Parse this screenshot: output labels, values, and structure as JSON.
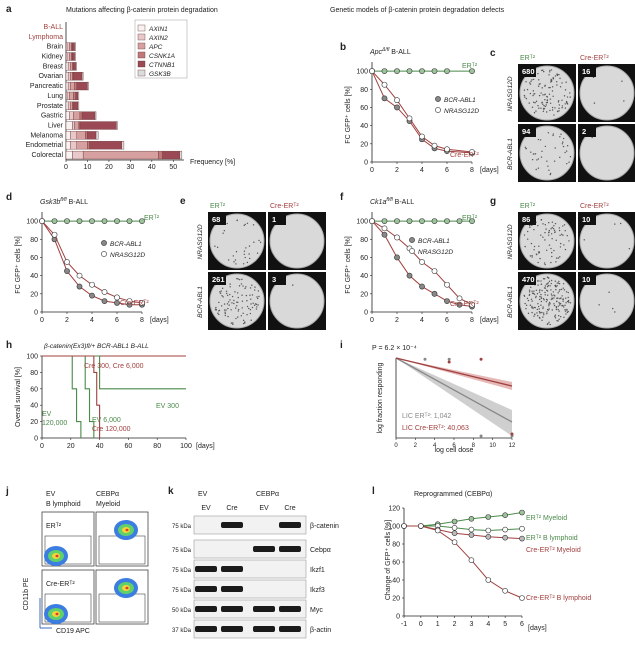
{
  "panels": {
    "a": {
      "letter": "a",
      "title": "Mutations affecting β-catenin protein degradation",
      "xlabel": "Frequency [%]",
      "legend": [
        "AXIN1",
        "AXIN2",
        "APC",
        "CSNK1A",
        "CTNNB1",
        "GSK3B"
      ],
      "colors": [
        "#f8f2f2",
        "#e8c8c8",
        "#d6a0a0",
        "#c07878",
        "#9b4a55",
        "#dcdcdc"
      ]
    },
    "genetic_title": "Genetic models of β-catenin protein degradation defects",
    "b": {
      "letter": "b",
      "title": "Apc",
      "title_sup": "Δ/fl",
      "title_suffix": " B-ALL",
      "ylabel": "FC GFP⁺ cells [%]",
      "xlabel": "[days]",
      "ert2": "ERᵀ²",
      "cre": "Cre-ERᵀ²",
      "leg1": "BCR-ABL1",
      "leg2": "NRASG12D"
    },
    "c": {
      "letter": "c",
      "col1": "ERᵀ²",
      "col2": "Cre-ERᵀ²",
      "row1": "NRASG12D",
      "row2": "BCR-ABL1",
      "counts": [
        "680",
        "16",
        "94",
        "2"
      ]
    },
    "d": {
      "letter": "d",
      "title": "Gsk3b",
      "title_sup": "fl/fl",
      "title_suffix": " B-ALL",
      "ylabel": "FC GFP⁺ cells [%]",
      "xlabel": "[days]",
      "ert2": "ERᵀ²",
      "cre": "Cre-ERᵀ²",
      "leg1": "BCR-ABL1",
      "leg2": "NRASG12D"
    },
    "e": {
      "letter": "e",
      "col1": "ERᵀ²",
      "col2": "Cre-ERᵀ²",
      "row1": "NRASG12D",
      "row2": "BCR-ABL1",
      "counts": [
        "68",
        "1",
        "261",
        "3"
      ]
    },
    "f": {
      "letter": "f",
      "title": "Ck1a",
      "title_sup": "fl/fl",
      "title_suffix": " B-ALL",
      "ylabel": "FC GFP⁺ cells [%]",
      "xlabel": "[days]",
      "ert2": "ERᵀ²",
      "cre": "Cre-ERᵀ²",
      "leg1": "BCR-ABL1",
      "leg2": "NRASG12D"
    },
    "g": {
      "letter": "g",
      "col1": "ERᵀ²",
      "col2": "Cre-ERᵀ²",
      "row1": "NRASG12D",
      "row2": "BCR-ABL1",
      "counts": [
        "86",
        "10",
        "470",
        "10"
      ]
    },
    "h": {
      "letter": "h",
      "title": "β-catenin(Ex3)fl/+ BCR-ABL1 B-ALL",
      "ylabel": "Overall survival [%]",
      "xlabel": "[days]",
      "lab_cre1": "Cre 300, Cre 6,000",
      "lab_ev300": "EV 300",
      "lab_ev6000": "EV 6,000",
      "lab_ev120k": "EV",
      "lab_ev120k2": "120,000",
      "lab_cre120k": "Cre 120,000"
    },
    "i": {
      "letter": "i",
      "title": "P = 6.2 × 10⁻⁴",
      "ylabel": "log fraction responding",
      "xlabel": "log cell dose",
      "lic1": "LIC ERᵀ²: 1,042",
      "lic2": "LIC Cre-ERᵀ²: 40,063"
    },
    "j": {
      "letter": "j",
      "col1a": "EV",
      "col1b": "B lymphoid",
      "col2a": "CEBPα",
      "col2b": "Myeloid",
      "row1": "ERᵀ²",
      "row2": "Cre-ERᵀ²",
      "ylabel": "CD11b PE",
      "xlabel": "CD19 APC"
    },
    "k": {
      "letter": "k",
      "grp1": "EV",
      "grp2": "CEBPα",
      "lanes": [
        "EV",
        "Cre",
        "EV",
        "Cre"
      ],
      "mw": [
        "75 kDa",
        "75 kDa",
        "75 kDa",
        "75 kDa",
        "50 kDa",
        "37 kDa"
      ],
      "bands": [
        "β-catenin",
        "Cebpα",
        "Ikzf1",
        "Ikzf3",
        "Myc",
        "β-actin"
      ]
    },
    "l": {
      "letter": "l",
      "title": "Reprogrammed (CEBPα)",
      "ylabel": "Change of GFP⁺ cells [%]",
      "xlabel": "[days]",
      "lab1": "ERᵀ² Myeloid",
      "lab2": "ERᵀ² B lymphoid",
      "lab3": "Cre-ERᵀ² Myeloid",
      "lab4": "Cre-ERᵀ² B lymphoid"
    }
  },
  "chart_data": [
    {
      "type": "bar",
      "id": "a",
      "stacked": true,
      "orientation": "horizontal",
      "categories": [
        "B-ALL",
        "Lymphoma",
        "Brain",
        "Kidney",
        "Breast",
        "Ovarian",
        "Pancreatic",
        "Lung",
        "Prostate",
        "Gastric",
        "Liver",
        "Melanoma",
        "Endometrial",
        "Colorectal"
      ],
      "category_colors": [
        "#a0403f",
        "#a0403f",
        "#222",
        "#222",
        "#222",
        "#222",
        "#222",
        "#222",
        "#222",
        "#222",
        "#222",
        "#222",
        "#222",
        "#222"
      ],
      "series": [
        {
          "name": "AXIN1",
          "values": [
            0,
            0,
            0.5,
            0.5,
            1,
            1,
            1,
            0.5,
            1,
            1.5,
            3,
            2,
            2,
            3
          ]
        },
        {
          "name": "AXIN2",
          "values": [
            0,
            0,
            1,
            1,
            1,
            1,
            1,
            1,
            1,
            2,
            1,
            3,
            3,
            5
          ]
        },
        {
          "name": "APC",
          "values": [
            0,
            0,
            1,
            1,
            1,
            1,
            2,
            2,
            1,
            3,
            2,
            4,
            5,
            35
          ]
        },
        {
          "name": "CSNK1A",
          "values": [
            0,
            0,
            0.5,
            0.5,
            0.5,
            0.5,
            1,
            1,
            0.5,
            1,
            0.5,
            1,
            1,
            2
          ]
        },
        {
          "name": "CTNNB1",
          "values": [
            0,
            0,
            1,
            1,
            1,
            4,
            5,
            1,
            2,
            6,
            17,
            4,
            15,
            8
          ]
        },
        {
          "name": "GSK3B",
          "values": [
            0,
            0,
            0.5,
            0.5,
            0.5,
            0.5,
            0.5,
            0.5,
            0.5,
            0.5,
            0.5,
            1,
            1,
            1
          ]
        }
      ],
      "xlabel": "Frequency [%]",
      "xticks": [
        0,
        10,
        20,
        30,
        40,
        50
      ],
      "xlim": [
        0,
        55
      ]
    },
    {
      "type": "line",
      "id": "b",
      "x": [
        0,
        1,
        2,
        3,
        4,
        5,
        6,
        8
      ],
      "ylim": [
        0,
        110
      ],
      "xlim": [
        0,
        8
      ],
      "xticks": [
        0,
        2,
        4,
        6,
        8
      ],
      "yticks": [
        0,
        20,
        40,
        60,
        80,
        100
      ],
      "series": [
        {
          "name": "ERT2",
          "values": [
            100,
            100,
            100,
            100,
            100,
            100,
            100,
            100
          ],
          "color": "#4a8a4a"
        },
        {
          "name": "BCR-ABL1",
          "values": [
            100,
            70,
            60,
            45,
            25,
            15,
            12,
            10
          ],
          "color": "#a0403f"
        },
        {
          "name": "NRASG12D",
          "values": [
            100,
            85,
            68,
            48,
            28,
            18,
            14,
            11
          ],
          "color": "#a0403f"
        }
      ]
    },
    {
      "type": "line",
      "id": "d",
      "x": [
        0,
        1,
        2,
        3,
        4,
        5,
        6,
        7,
        8
      ],
      "ylim": [
        0,
        110
      ],
      "xlim": [
        0,
        8
      ],
      "xticks": [
        0,
        2,
        4,
        6,
        8
      ],
      "yticks": [
        0,
        20,
        40,
        60,
        80,
        100
      ],
      "series": [
        {
          "name": "ERT2",
          "values": [
            100,
            100,
            100,
            100,
            100,
            100,
            100,
            100,
            100
          ],
          "color": "#4a8a4a"
        },
        {
          "name": "BCR-ABL1",
          "values": [
            100,
            80,
            45,
            28,
            18,
            12,
            10,
            8,
            8
          ],
          "color": "#a0403f"
        },
        {
          "name": "NRASG12D",
          "values": [
            100,
            85,
            55,
            40,
            30,
            22,
            16,
            12,
            10
          ],
          "color": "#a0403f"
        }
      ]
    },
    {
      "type": "line",
      "id": "f",
      "x": [
        0,
        1,
        2,
        3,
        4,
        5,
        6,
        7,
        8
      ],
      "ylim": [
        0,
        110
      ],
      "xlim": [
        0,
        8
      ],
      "xticks": [
        0,
        2,
        4,
        6,
        8
      ],
      "yticks": [
        0,
        20,
        40,
        60,
        80,
        100
      ],
      "series": [
        {
          "name": "ERT2",
          "values": [
            100,
            100,
            100,
            100,
            100,
            100,
            100,
            100,
            100
          ],
          "color": "#4a8a4a"
        },
        {
          "name": "BCR-ABL1",
          "values": [
            100,
            85,
            60,
            40,
            28,
            20,
            12,
            8,
            6
          ],
          "color": "#a0403f"
        },
        {
          "name": "NRASG12D",
          "values": [
            100,
            92,
            82,
            70,
            55,
            45,
            30,
            15,
            8
          ],
          "color": "#a0403f"
        }
      ]
    },
    {
      "type": "line",
      "id": "h",
      "step": true,
      "xlim": [
        0,
        100
      ],
      "ylim": [
        0,
        100
      ],
      "xticks": [
        0,
        20,
        40,
        60,
        80,
        100
      ],
      "yticks": [
        0,
        20,
        40,
        60,
        80,
        100
      ],
      "series": [
        {
          "name": "Cre 300, Cre 6,000",
          "x": [
            0,
            100
          ],
          "values": [
            100,
            100
          ],
          "color": "#a0403f"
        },
        {
          "name": "EV 300",
          "x": [
            0,
            40,
            40,
            100
          ],
          "values": [
            100,
            100,
            60,
            60
          ],
          "color": "#4a8a4a"
        },
        {
          "name": "EV 6,000",
          "x": [
            0,
            30,
            30,
            33,
            33,
            36,
            36
          ],
          "values": [
            100,
            100,
            60,
            60,
            20,
            20,
            0
          ],
          "color": "#4a8a4a"
        },
        {
          "name": "EV 120,000",
          "x": [
            0,
            21,
            21,
            24,
            24,
            27,
            27
          ],
          "values": [
            100,
            100,
            60,
            60,
            20,
            20,
            0
          ],
          "color": "#4a8a4a"
        },
        {
          "name": "Cre 120,000",
          "x": [
            0,
            36,
            36,
            38,
            38,
            40,
            40
          ],
          "values": [
            100,
            100,
            80,
            80,
            40,
            40,
            0
          ],
          "color": "#a0403f"
        }
      ]
    },
    {
      "type": "line",
      "id": "i",
      "xlim": [
        0,
        12
      ],
      "ylim": [
        -2,
        0
      ],
      "xticks": [
        0,
        2,
        4,
        6,
        8,
        10,
        12
      ],
      "yticks": [
        0,
        -0.5,
        -1,
        -1.5,
        -2
      ],
      "series": [
        {
          "name": "LIC ERT2",
          "x": [
            0,
            12
          ],
          "values": [
            0,
            -1.6
          ],
          "color": "#888"
        },
        {
          "name": "LIC Cre-ERT2",
          "x": [
            0,
            12
          ],
          "values": [
            0,
            -0.7
          ],
          "color": "#a0403f"
        }
      ]
    },
    {
      "type": "line",
      "id": "l",
      "x": [
        -1,
        0,
        1,
        2,
        3,
        4,
        5,
        6
      ],
      "xlim": [
        -1,
        6
      ],
      "ylim": [
        0,
        120
      ],
      "xticks": [
        -1,
        0,
        1,
        2,
        3,
        4,
        5,
        6
      ],
      "yticks": [
        0,
        20,
        40,
        60,
        80,
        100,
        120
      ],
      "series": [
        {
          "name": "ERT2 Myeloid",
          "values": [
            100,
            100,
            102,
            105,
            108,
            110,
            112,
            115
          ],
          "color": "#4a8a4a"
        },
        {
          "name": "ERT2 B lymphoid",
          "values": [
            100,
            100,
            100,
            98,
            96,
            95,
            96,
            97
          ],
          "color": "#4a8a4a"
        },
        {
          "name": "Cre-ERT2 Myeloid",
          "values": [
            100,
            100,
            96,
            92,
            90,
            88,
            87,
            86
          ],
          "color": "#a0403f"
        },
        {
          "name": "Cre-ERT2 B lymphoid",
          "values": [
            100,
            100,
            95,
            82,
            62,
            40,
            28,
            20
          ],
          "color": "#a0403f"
        }
      ]
    }
  ]
}
